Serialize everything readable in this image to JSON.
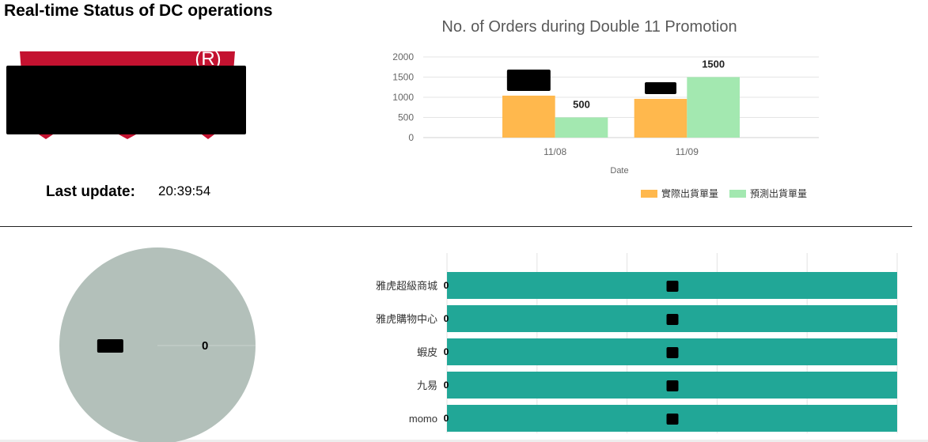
{
  "header": {
    "title": "Real-time Status of DC operations"
  },
  "logo": {
    "mark": "(R)",
    "color": "#C41230"
  },
  "status": {
    "update_label": "Last update:",
    "update_time": "20:39:54"
  },
  "chart_data": [
    {
      "type": "bar",
      "title": "No. of Orders during Double 11 Promotion",
      "xlabel": "Date",
      "categories": [
        "11/08",
        "11/09"
      ],
      "ylim": [
        0,
        2000
      ],
      "yticks": [
        0,
        500,
        1000,
        1500,
        2000
      ],
      "grid": true,
      "legend": "bottom-right",
      "series": [
        {
          "name": "實際出貨單量",
          "color": "#FFB84D",
          "values": [
            1040,
            960
          ],
          "labels_redacted": true
        },
        {
          "name": "預測出貨單量",
          "color": "#A3E8B0",
          "values": [
            500,
            1500
          ],
          "labels_redacted": false
        }
      ]
    },
    {
      "type": "pie",
      "color": "#B3C0BA",
      "slices": [
        {
          "share": 1,
          "label_redacted": true
        },
        {
          "share": 0,
          "label_redacted": false
        }
      ]
    },
    {
      "type": "bar",
      "orientation": "horizontal",
      "stacked": true,
      "categories": [
        "雅虎超級商城",
        "雅虎購物中心",
        "蝦皮",
        "九易",
        "momo"
      ],
      "xlim": [
        0,
        1
      ],
      "grid": true,
      "series": [
        {
          "color": "#21A797",
          "values": [
            0,
            0,
            0,
            0,
            0
          ],
          "labels_redacted": false
        },
        {
          "color": "#21A797",
          "values": [
            1,
            1,
            1,
            1,
            1
          ],
          "labels_redacted": true
        }
      ]
    }
  ]
}
